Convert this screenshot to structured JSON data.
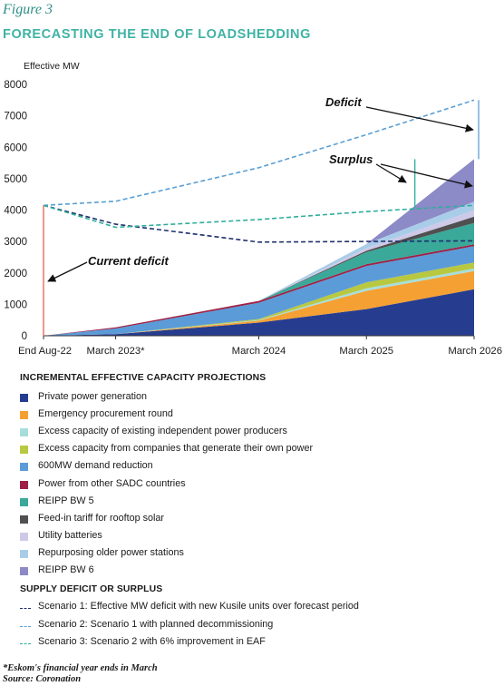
{
  "figure_label": "Figure 3",
  "figure_title": "FORECASTING THE END OF LOADSHEDDING",
  "chart_data": {
    "type": "area",
    "ylabel": "Effective MW",
    "ylim": [
      0,
      8000
    ],
    "yticks": [
      "0",
      "1000",
      "2000",
      "3000",
      "4000",
      "5000",
      "6000",
      "7000",
      "8000"
    ],
    "categories": [
      "End Aug-22",
      "March 2023*",
      "March 2024",
      "March 2025",
      "March 2026"
    ],
    "x": [
      0,
      0.67,
      2,
      3,
      4
    ],
    "stack": [
      {
        "name": "Private power generation",
        "color": "#263d8f",
        "values": [
          0,
          50,
          420,
          850,
          1480
        ]
      },
      {
        "name": "Emergency procurement round",
        "color": "#f5a033",
        "values": [
          0,
          0,
          60,
          580,
          580
        ]
      },
      {
        "name": "Excess capacity of existing independent power producers",
        "color": "#a6dedc",
        "values": [
          0,
          0,
          20,
          80,
          80
        ]
      },
      {
        "name": "Excess capacity from companies that generate their own power",
        "color": "#b8c840",
        "values": [
          0,
          0,
          30,
          190,
          190
        ]
      },
      {
        "name": "600MW demand reduction",
        "color": "#5b9bd8",
        "values": [
          0,
          180,
          520,
          520,
          520
        ]
      },
      {
        "name": "Power from other SADC countries",
        "color": "#9d2146",
        "values": [
          0,
          40,
          60,
          60,
          60
        ]
      },
      {
        "name": "REIPP BW 5",
        "color": "#3aa99a",
        "values": [
          0,
          0,
          0,
          380,
          680
        ]
      },
      {
        "name": "Feed-in tariff for rooftop solar",
        "color": "#505050",
        "values": [
          0,
          0,
          0,
          50,
          200
        ]
      },
      {
        "name": "Utility batteries",
        "color": "#cfc9e8",
        "values": [
          0,
          0,
          0,
          80,
          200
        ]
      },
      {
        "name": "Repurposing older power stations",
        "color": "#a9cde9",
        "values": [
          0,
          0,
          0,
          130,
          280
        ]
      },
      {
        "name": "REIPP BW 6",
        "color": "#8c8ac7",
        "values": [
          0,
          0,
          0,
          0,
          1350
        ]
      }
    ],
    "scenarios": [
      {
        "name": "Scenario 1: Effective MW deficit with new Kusile units over forecast period",
        "color": "#1e2f6e",
        "values": [
          4150,
          3550,
          2980,
          3000,
          3020
        ]
      },
      {
        "name": "Scenario 2: Scenario 1 with planned decommissioning",
        "color": "#5a9fd4",
        "values": [
          4150,
          4280,
          5350,
          6400,
          7500
        ]
      },
      {
        "name": "Scenario 3: Scenario 2 with 6% improvement in EAF",
        "color": "#2fae9c",
        "values": [
          4150,
          3450,
          3700,
          3950,
          4150
        ]
      }
    ],
    "annotations": {
      "deficit": "Deficit",
      "surplus": "Surplus",
      "current_deficit": "Current deficit"
    }
  },
  "legend": {
    "stack_heading": "INCREMENTAL EFFECTIVE CAPACITY PROJECTIONS",
    "scenario_heading": "SUPPLY DEFICIT OR SURPLUS"
  },
  "footnote": "*Eskom's financial year ends in March",
  "source": "Source: Coronation"
}
